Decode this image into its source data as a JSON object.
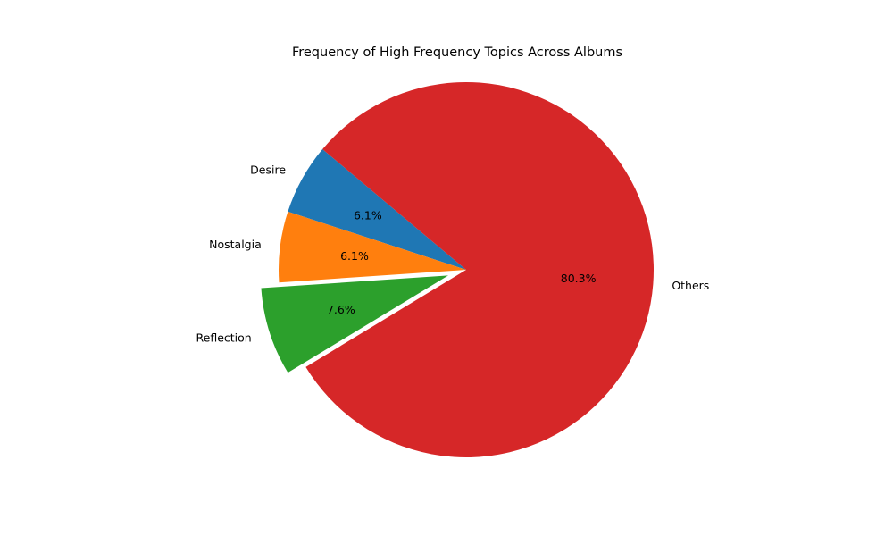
{
  "chart_data": {
    "type": "pie",
    "title": "Frequency of High Frequency Topics Across Albums",
    "start_angle_deg": 140,
    "direction": "counterclockwise",
    "slices": [
      {
        "label": "Desire",
        "value": 6.1,
        "value_text": "6.1%",
        "color": "#1f77b4",
        "exploded": false
      },
      {
        "label": "Nostalgia",
        "value": 6.1,
        "value_text": "6.1%",
        "color": "#ff7f0e",
        "exploded": false
      },
      {
        "label": "Reflection",
        "value": 7.6,
        "value_text": "7.6%",
        "color": "#2ca02c",
        "exploded": true
      },
      {
        "label": "Others",
        "value": 80.3,
        "value_text": "80.3%",
        "color": "#d62728",
        "exploded": false
      }
    ]
  }
}
